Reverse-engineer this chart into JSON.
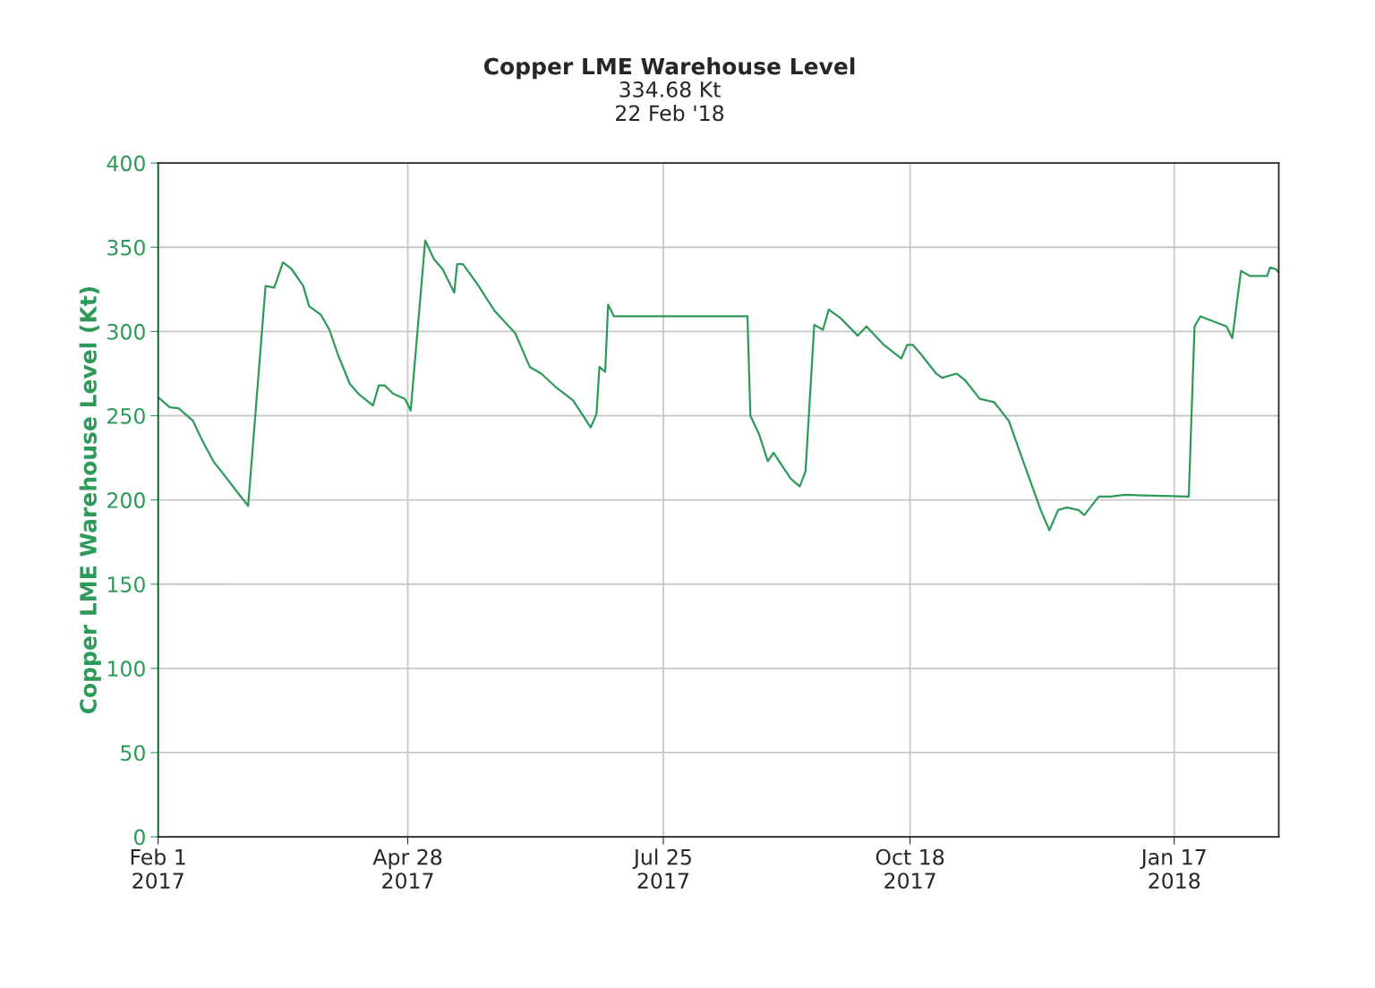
{
  "chart_data": {
    "type": "line",
    "title": "Copper LME Warehouse Level",
    "subtitle": "334.68 Kt\n22 Feb '18",
    "ylabel": "Copper LME Warehouse Level (Kt)",
    "x": [
      "2017-02-01",
      "2017-02-05",
      "2017-02-08",
      "2017-02-13",
      "2017-02-16",
      "2017-02-20",
      "2017-02-25",
      "2017-03-01",
      "2017-03-04",
      "2017-03-10",
      "2017-03-13",
      "2017-03-16",
      "2017-03-19",
      "2017-03-23",
      "2017-03-25",
      "2017-03-29",
      "2017-04-01",
      "2017-04-04",
      "2017-04-08",
      "2017-04-11",
      "2017-04-16",
      "2017-04-18",
      "2017-04-20",
      "2017-04-23",
      "2017-04-27",
      "2017-04-29",
      "2017-05-04",
      "2017-05-07",
      "2017-05-10",
      "2017-05-14",
      "2017-05-15",
      "2017-05-17",
      "2017-05-22",
      "2017-05-28",
      "2017-06-04",
      "2017-06-09",
      "2017-06-13",
      "2017-06-18",
      "2017-06-24",
      "2017-06-30",
      "2017-07-02",
      "2017-07-03",
      "2017-07-05",
      "2017-07-06",
      "2017-07-08",
      "2017-08-23",
      "2017-08-24",
      "2017-08-27",
      "2017-08-30",
      "2017-09-01",
      "2017-09-04",
      "2017-09-07",
      "2017-09-10",
      "2017-09-12",
      "2017-09-15",
      "2017-09-18",
      "2017-09-20",
      "2017-09-24",
      "2017-09-30",
      "2017-10-03",
      "2017-10-09",
      "2017-10-15",
      "2017-10-17",
      "2017-10-19",
      "2017-10-22",
      "2017-10-27",
      "2017-10-29",
      "2017-11-03",
      "2017-11-06",
      "2017-11-11",
      "2017-11-16",
      "2017-11-21",
      "2017-11-27",
      "2017-12-02",
      "2017-12-05",
      "2017-12-08",
      "2017-12-11",
      "2017-12-15",
      "2017-12-17",
      "2017-12-22",
      "2017-12-26",
      "2017-12-31",
      "2018-01-22",
      "2018-01-24",
      "2018-01-26",
      "2018-02-01",
      "2018-02-04",
      "2018-02-06",
      "2018-02-09",
      "2018-02-12",
      "2018-02-18",
      "2018-02-19",
      "2018-02-21",
      "2018-02-22"
    ],
    "series": [
      {
        "color": "#2e9a5a",
        "values": [
          261,
          255,
          254.5,
          247,
          236,
          223,
          212,
          203,
          196.5,
          327,
          326,
          341,
          337,
          327,
          315,
          310,
          301,
          286,
          269,
          263,
          256,
          268,
          268,
          263,
          260,
          253,
          354,
          343,
          337,
          323,
          340,
          340,
          328,
          312,
          299,
          279,
          275,
          267,
          259,
          243,
          251,
          279,
          276,
          316,
          309,
          309,
          250,
          239,
          223,
          228,
          220,
          212.5,
          208,
          217,
          304,
          301,
          313,
          308,
          297.5,
          303,
          292,
          284,
          292,
          292,
          286,
          275,
          272.5,
          275,
          271,
          260,
          258,
          247,
          218,
          194,
          182,
          194,
          195.5,
          194,
          191,
          202,
          202,
          203,
          202,
          303,
          309,
          305,
          303,
          296,
          336,
          333,
          333,
          338,
          337,
          335
        ]
      }
    ],
    "xlim": [
      "2017-02-01",
      "2018-02-22"
    ],
    "xticks": [
      {
        "value": "2017-02-01",
        "label": "Feb 1\n2017"
      },
      {
        "value": "2017-04-28",
        "label": "Apr 28\n2017"
      },
      {
        "value": "2017-07-25",
        "label": "Jul 25\n2017"
      },
      {
        "value": "2017-10-18",
        "label": "Oct 18\n2017"
      },
      {
        "value": "2018-01-17",
        "label": "Jan 17\n2018"
      }
    ],
    "ylim": [
      0,
      400
    ],
    "yticks": [
      0,
      50,
      100,
      150,
      200,
      250,
      300,
      350,
      400
    ],
    "grid": true,
    "marker": "none",
    "line_style": "solid"
  }
}
